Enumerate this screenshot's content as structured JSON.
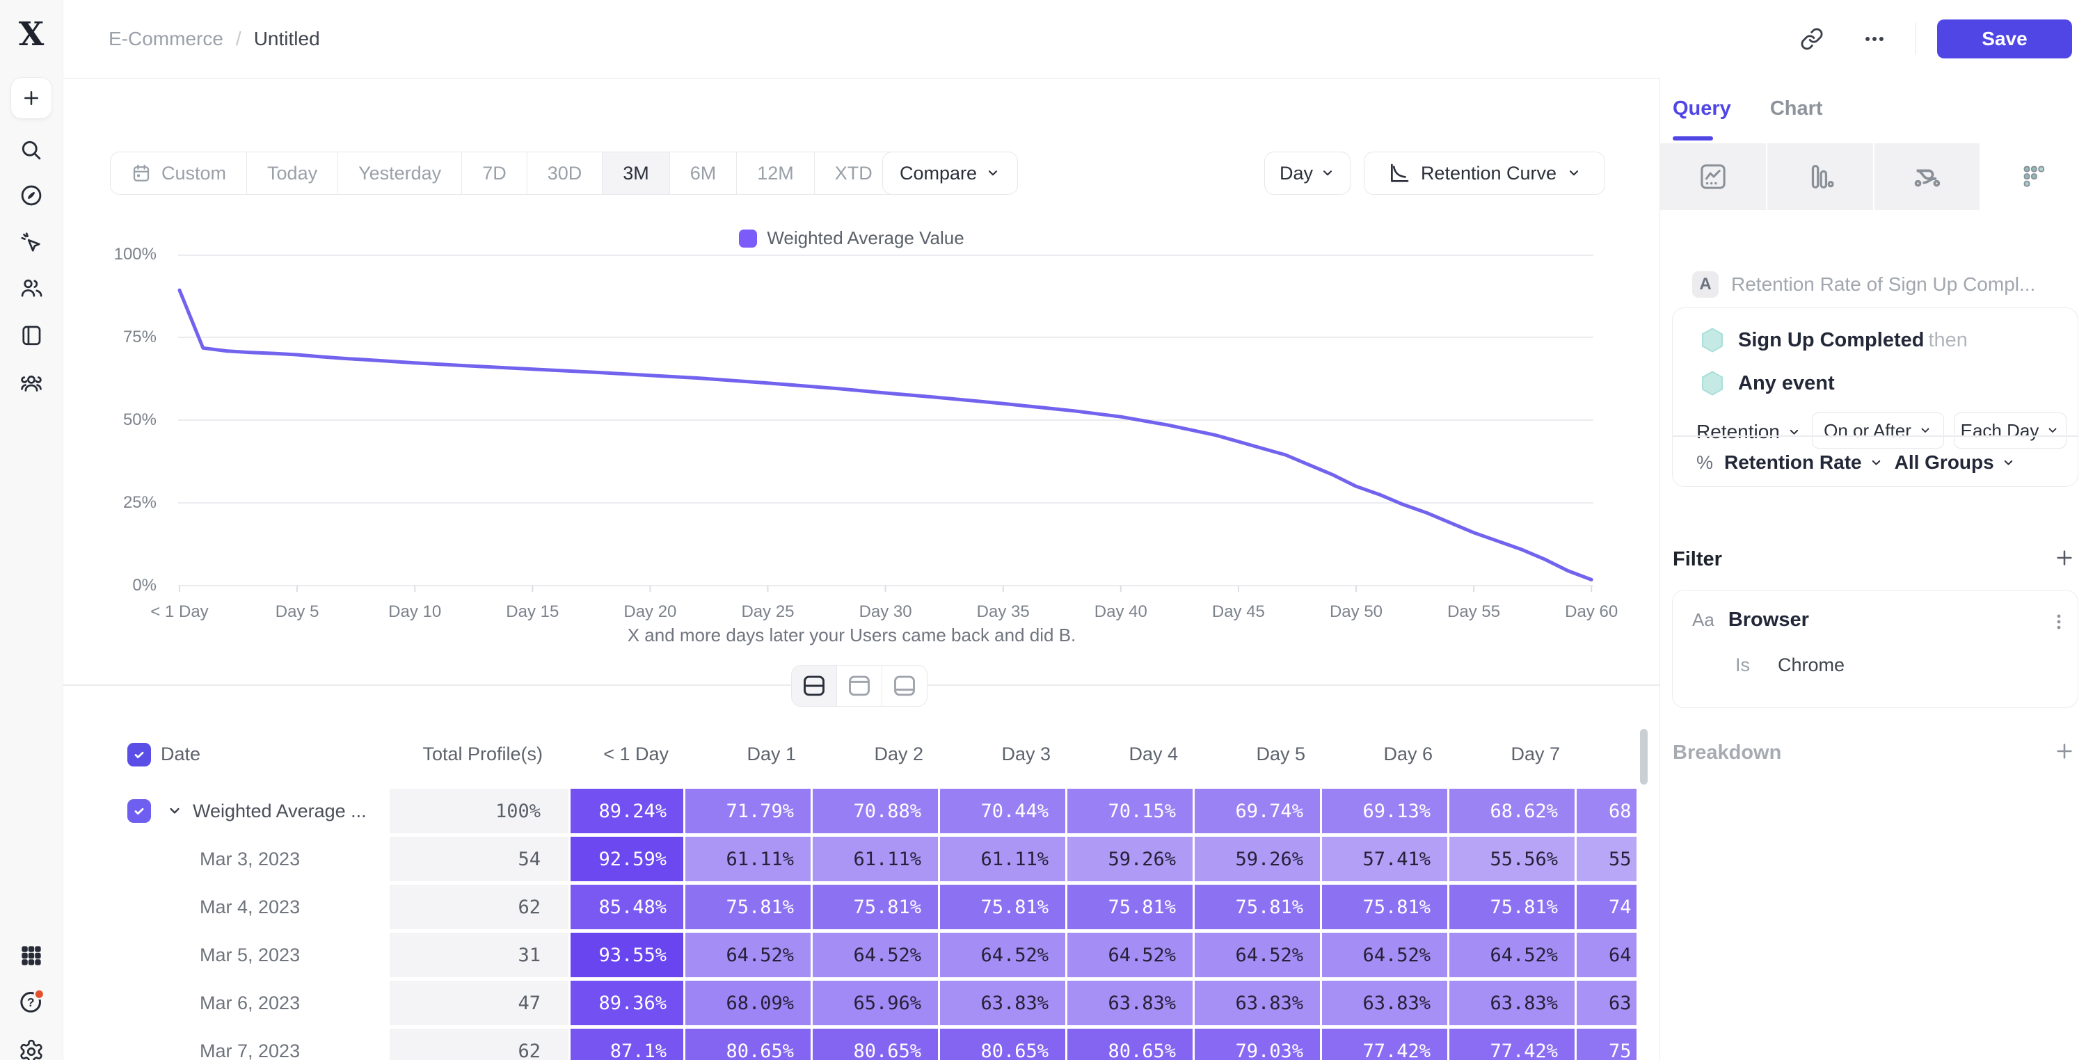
{
  "sidebar": {
    "top_icons": [
      "plus",
      "search",
      "compass",
      "cursor-sparkle",
      "users",
      "notebook",
      "user-group"
    ],
    "bottom_icons": [
      "apps-grid",
      "help",
      "settings"
    ]
  },
  "header": {
    "breadcrumb": [
      "E-Commerce",
      "Untitled"
    ],
    "separator": "/",
    "save_label": "Save"
  },
  "toolbar": {
    "date_ranges": [
      "Custom",
      "Today",
      "Yesterday",
      "7D",
      "30D",
      "3M",
      "6M",
      "12M",
      "XTD"
    ],
    "active_range": "3M",
    "compare_label": "Compare",
    "granularity_label": "Day",
    "chart_type_label": "Retention Curve"
  },
  "legend_label": "Weighted Average Value",
  "chart_data": {
    "type": "line",
    "series": [
      {
        "name": "Weighted Average Value",
        "color": "#7263ee",
        "points": [
          [
            0,
            89.24
          ],
          [
            1,
            71.79
          ],
          [
            2,
            70.88
          ],
          [
            3,
            70.44
          ],
          [
            4,
            70.15
          ],
          [
            5,
            69.74
          ],
          [
            6,
            69.13
          ],
          [
            7,
            68.62
          ],
          [
            8,
            68.2
          ],
          [
            10,
            67.3
          ],
          [
            12,
            66.5
          ],
          [
            15,
            65.4
          ],
          [
            18,
            64.3
          ],
          [
            20,
            63.5
          ],
          [
            22,
            62.7
          ],
          [
            25,
            61.2
          ],
          [
            28,
            59.5
          ],
          [
            30,
            58.2
          ],
          [
            32,
            57.0
          ],
          [
            35,
            55.0
          ],
          [
            38,
            52.8
          ],
          [
            40,
            51.0
          ],
          [
            42,
            48.5
          ],
          [
            44,
            45.5
          ],
          [
            45,
            43.5
          ],
          [
            46,
            41.5
          ],
          [
            47,
            39.5
          ],
          [
            48,
            36.5
          ],
          [
            49,
            33.5
          ],
          [
            50,
            30.0
          ],
          [
            51,
            27.5
          ],
          [
            52,
            24.5
          ],
          [
            53,
            22.0
          ],
          [
            54,
            19.0
          ],
          [
            55,
            16.0
          ],
          [
            56,
            13.5
          ],
          [
            57,
            11.0
          ],
          [
            58,
            8.0
          ],
          [
            59,
            4.5
          ],
          [
            60,
            1.8
          ]
        ]
      }
    ],
    "x_ticks": {
      "days": [
        0,
        5,
        10,
        15,
        20,
        25,
        30,
        35,
        40,
        45,
        50,
        55,
        60
      ],
      "labels": [
        "< 1 Day",
        "Day 5",
        "Day 10",
        "Day 15",
        "Day 20",
        "Day 25",
        "Day 30",
        "Day 35",
        "Day 40",
        "Day 45",
        "Day 50",
        "Day 55",
        "Day 60"
      ]
    },
    "y_ticks": [
      "100%",
      "75%",
      "50%",
      "25%",
      "0%"
    ],
    "ylim": [
      0,
      100
    ],
    "xlim": [
      0,
      60
    ],
    "grid": "horizontal",
    "legend_position": "top-center",
    "xlabel": "X and more days later your Users came back and did B."
  },
  "view_toggle": {
    "options": [
      "split-view",
      "chart-only-view",
      "table-only-view"
    ],
    "active": 0
  },
  "table": {
    "columns": [
      "Date",
      "Total Profile(s)",
      "< 1 Day",
      "Day 1",
      "Day 2",
      "Day 3",
      "Day 4",
      "Day 5",
      "Day 6",
      "Day 7"
    ],
    "rows": [
      {
        "label": "Weighted Average ...",
        "has_checkbox": true,
        "total": "100%",
        "cells": [
          89.24,
          71.79,
          70.88,
          70.44,
          70.15,
          69.74,
          69.13,
          68.62
        ],
        "day8_partial": "68",
        "day8_white": true
      },
      {
        "label": "Mar 3, 2023",
        "has_checkbox": false,
        "total": "54",
        "cells": [
          92.59,
          61.11,
          61.11,
          61.11,
          59.26,
          59.26,
          57.41,
          55.56
        ],
        "day8_partial": "55",
        "day8_white": false
      },
      {
        "label": "Mar 4, 2023",
        "has_checkbox": false,
        "total": "62",
        "cells": [
          85.48,
          75.81,
          75.81,
          75.81,
          75.81,
          75.81,
          75.81,
          75.81
        ],
        "day8_partial": "74",
        "day8_white": true
      },
      {
        "label": "Mar 5, 2023",
        "has_checkbox": false,
        "total": "31",
        "cells": [
          93.55,
          64.52,
          64.52,
          64.52,
          64.52,
          64.52,
          64.52,
          64.52
        ],
        "day8_partial": "64",
        "day8_white": false
      },
      {
        "label": "Mar 6, 2023",
        "has_checkbox": false,
        "total": "47",
        "cells": [
          89.36,
          68.09,
          65.96,
          63.83,
          63.83,
          63.83,
          63.83,
          63.83
        ],
        "day8_partial": "63",
        "day8_white": false
      },
      {
        "label": "Mar 7, 2023",
        "has_checkbox": false,
        "total": "62",
        "cells": [
          87.1,
          80.65,
          80.65,
          80.65,
          80.65,
          79.03,
          77.42,
          77.42
        ],
        "day8_partial": "75",
        "day8_white": true
      }
    ]
  },
  "panel": {
    "tabs": [
      {
        "label": "Query",
        "active": true
      },
      {
        "label": "Chart",
        "active": false
      }
    ],
    "chart_type_tabs": [
      "line-chart",
      "bar-chart",
      "flow-chart",
      "retention-grid"
    ],
    "active_chart_type": 3,
    "query": {
      "badge": "A",
      "title": "Retention Rate of Sign Up Compl...",
      "steps": [
        {
          "label": "Sign Up Completed",
          "suffix": "then"
        },
        {
          "label": "Any event",
          "suffix": ""
        }
      ],
      "retention_label": "Retention",
      "window_label": "On or After",
      "interval_label": "Each Day",
      "measure_prefix": "%",
      "measure_label": "Retention Rate",
      "groups_label": "All Groups"
    },
    "filter": {
      "heading": "Filter",
      "property_type": "Aa",
      "property": "Browser",
      "operator": "Is",
      "value": "Chrome"
    },
    "breakdown": {
      "heading": "Breakdown"
    }
  },
  "colors": {
    "accent": "#4f46e5",
    "line": "#7263ee",
    "legend_swatch": "#7c5cf9",
    "cell_low": "#baa8f7",
    "cell_high": "#6844f0",
    "help_dot": "#e4502a"
  }
}
